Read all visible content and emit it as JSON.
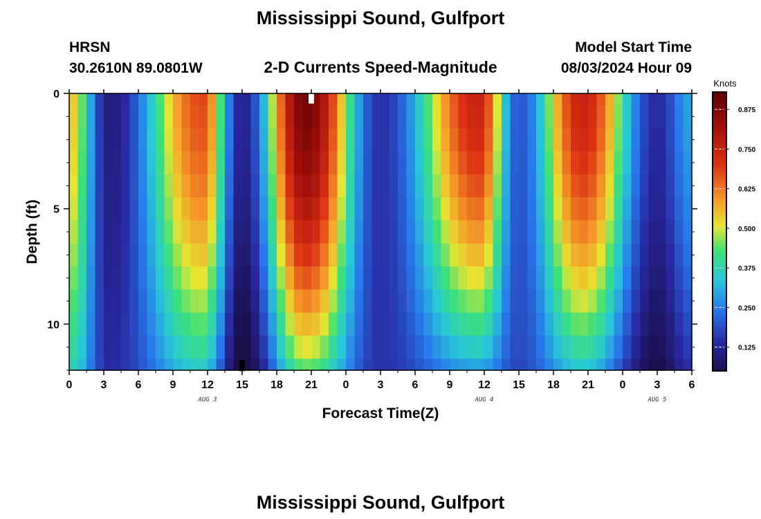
{
  "header": {
    "title": "Mississippi Sound, Gulfport",
    "station": "HRSN",
    "coords": "30.2610N  89.0801W",
    "subtitle": "2-D Currents Speed-Magnitude",
    "model_label": "Model Start Time",
    "model_time": "08/03/2024 Hour 09"
  },
  "footer": {
    "title": "Mississippi Sound, Gulfport"
  },
  "chart_data": {
    "type": "heatmap",
    "title": "2-D Currents Speed-Magnitude",
    "xlabel": "Forecast Time(Z)",
    "ylabel": "Depth (ft)",
    "x_tick_labels": [
      "0",
      "3",
      "6",
      "9",
      "12",
      "15",
      "18",
      "21",
      "0",
      "3",
      "6",
      "9",
      "12",
      "15",
      "18",
      "21",
      "0",
      "3",
      "6"
    ],
    "x_range_hours": [
      0,
      54
    ],
    "date_labels": [
      {
        "text": "AUG 3",
        "hour": 12
      },
      {
        "text": "AUG 4",
        "hour": 36
      },
      {
        "text": "AUG 5",
        "hour": 51
      }
    ],
    "y_tick_labels": [
      "0",
      "5",
      "10"
    ],
    "y_range_ft": [
      0,
      12
    ],
    "colorbar": {
      "label": "Knots",
      "ticks": [
        "0.125",
        "0.250",
        "0.375",
        "0.500",
        "0.625",
        "0.750",
        "0.875"
      ],
      "range": [
        0.05,
        0.93
      ]
    },
    "depth_levels_ft": [
      0,
      1,
      2,
      3,
      4,
      5,
      6,
      7,
      8,
      9,
      10,
      11,
      12
    ],
    "peaks": [
      {
        "hour": 0,
        "speed_top": 0.55,
        "speed_bottom": 0.38
      },
      {
        "hour": 3.5,
        "speed_top": 0.1,
        "speed_bottom": 0.14
      },
      {
        "hour": 11.5,
        "speed_top": 0.68,
        "speed_bottom": 0.36
      },
      {
        "hour": 15,
        "speed_top": 0.12,
        "speed_bottom": 0.03
      },
      {
        "hour": 20.5,
        "speed_top": 0.9,
        "speed_bottom": 0.45
      },
      {
        "hour": 27,
        "speed_top": 0.15,
        "speed_bottom": 0.15
      },
      {
        "hour": 35.5,
        "speed_top": 0.75,
        "speed_bottom": 0.3
      },
      {
        "hour": 39,
        "speed_top": 0.2,
        "speed_bottom": 0.18
      },
      {
        "hour": 44.5,
        "speed_top": 0.75,
        "speed_bottom": 0.35
      },
      {
        "hour": 51,
        "speed_top": 0.14,
        "speed_bottom": 0.05
      },
      {
        "hour": 54,
        "speed_top": 0.3,
        "speed_bottom": 0.15
      }
    ],
    "missing_cells": [
      {
        "hour": 21,
        "depth_ft": 0.2,
        "color": "#ffffff"
      },
      {
        "hour": 15,
        "depth_ft": 11.8,
        "color": "#000000"
      }
    ]
  }
}
